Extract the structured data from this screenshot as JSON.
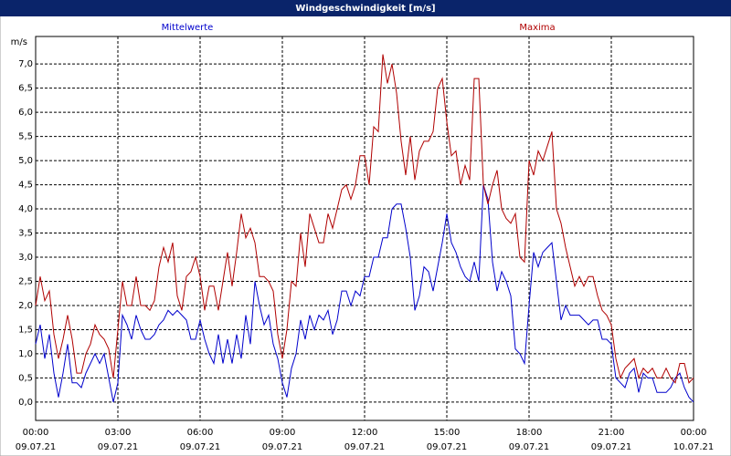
{
  "chart_data": {
    "type": "line",
    "title": "Windgeschwindigkeit [m/s]",
    "y_label": "m/s",
    "x": [
      0,
      10,
      20,
      30,
      40,
      50,
      60,
      70,
      80,
      90,
      100,
      110,
      120,
      130,
      140,
      150,
      160,
      170,
      180,
      190,
      200,
      210,
      220,
      230,
      240,
      250,
      260,
      270,
      280,
      290,
      300,
      310,
      320,
      330,
      340,
      350,
      360,
      370,
      380,
      390,
      400,
      410,
      420,
      430,
      440,
      450,
      460,
      470,
      480,
      490,
      500,
      510,
      520,
      530,
      540,
      550,
      560,
      570,
      580,
      590,
      600,
      610,
      620,
      630,
      640,
      650,
      660,
      670,
      680,
      690,
      700,
      710,
      720,
      730,
      740,
      750,
      760,
      770,
      780,
      790,
      800,
      810,
      820,
      830,
      840,
      850,
      860,
      870,
      880,
      890,
      900,
      910,
      920,
      930,
      940,
      950,
      960,
      970,
      980,
      990,
      1000,
      1010,
      1020,
      1030,
      1040,
      1050,
      1060,
      1070,
      1080,
      1090,
      1100,
      1110,
      1120,
      1130,
      1140,
      1150,
      1160,
      1170,
      1180,
      1190,
      1200,
      1210,
      1220,
      1230,
      1240,
      1250,
      1260,
      1270,
      1280,
      1290,
      1300,
      1310,
      1320,
      1330,
      1340,
      1350,
      1360,
      1370,
      1380,
      1390,
      1400,
      1410,
      1420,
      1430,
      1440
    ],
    "xlim": [
      0,
      1440
    ],
    "xticks": [
      {
        "value": 0,
        "label": "00:00 09.07.21"
      },
      {
        "value": 180,
        "label": "03:00 09.07.21"
      },
      {
        "value": 360,
        "label": "06:00 09.07.21"
      },
      {
        "value": 540,
        "label": "09:00 09.07.21"
      },
      {
        "value": 720,
        "label": "12:00 09.07.21"
      },
      {
        "value": 900,
        "label": "15:00 09.07.21"
      },
      {
        "value": 1080,
        "label": "18:00 09.07.21"
      },
      {
        "value": 1260,
        "label": "21:00 09.07.21"
      },
      {
        "value": 1440,
        "label": "00:00 10.07.21"
      }
    ],
    "ylim": [
      -0.38,
      7.57
    ],
    "yticks": [
      {
        "value": 0,
        "label": "0,0"
      },
      {
        "value": 0.5,
        "label": "0,5"
      },
      {
        "value": 1,
        "label": "1,0"
      },
      {
        "value": 1.5,
        "label": "1,5"
      },
      {
        "value": 2,
        "label": "2,0"
      },
      {
        "value": 2.5,
        "label": "2,5"
      },
      {
        "value": 3,
        "label": "3,0"
      },
      {
        "value": 3.5,
        "label": "3,5"
      },
      {
        "value": 4,
        "label": "4,0"
      },
      {
        "value": 4.5,
        "label": "4,5"
      },
      {
        "value": 5,
        "label": "5,0"
      },
      {
        "value": 5.5,
        "label": "5,5"
      },
      {
        "value": 6,
        "label": "6,0"
      },
      {
        "value": 6.5,
        "label": "6,5"
      },
      {
        "value": 7,
        "label": "7,0"
      }
    ],
    "grid": true,
    "series": [
      {
        "name": "Mittelwerte",
        "color": "#0000cc",
        "values": [
          1.2,
          1.6,
          0.9,
          1.4,
          0.6,
          0.1,
          0.6,
          1.2,
          0.4,
          0.4,
          0.3,
          0.6,
          0.8,
          1.0,
          0.8,
          1.0,
          0.5,
          0.0,
          0.4,
          1.8,
          1.6,
          1.3,
          1.8,
          1.5,
          1.3,
          1.3,
          1.4,
          1.6,
          1.7,
          1.9,
          1.8,
          1.9,
          1.8,
          1.7,
          1.3,
          1.3,
          1.7,
          1.3,
          1.0,
          0.8,
          1.4,
          0.8,
          1.3,
          0.8,
          1.4,
          0.9,
          1.8,
          1.2,
          2.5,
          2.0,
          1.6,
          1.8,
          1.2,
          0.9,
          0.4,
          0.1,
          0.7,
          1.0,
          1.7,
          1.3,
          1.8,
          1.5,
          1.8,
          1.7,
          1.9,
          1.4,
          1.7,
          2.3,
          2.3,
          2.0,
          2.3,
          2.2,
          2.6,
          2.6,
          3.0,
          3.0,
          3.4,
          3.4,
          4.0,
          4.1,
          4.1,
          3.6,
          3.0,
          1.9,
          2.2,
          2.8,
          2.7,
          2.3,
          2.8,
          3.3,
          3.9,
          3.3,
          3.1,
          2.8,
          2.6,
          2.5,
          2.9,
          2.5,
          4.5,
          4.2,
          2.9,
          2.3,
          2.7,
          2.5,
          2.2,
          1.1,
          1.0,
          0.8,
          2.0,
          3.1,
          2.8,
          3.1,
          3.2,
          3.3,
          2.5,
          1.7,
          2.0,
          1.8,
          1.8,
          1.8,
          1.7,
          1.6,
          1.7,
          1.7,
          1.3,
          1.3,
          1.2,
          0.5,
          0.4,
          0.3,
          0.6,
          0.7,
          0.2,
          0.6,
          0.5,
          0.5,
          0.2,
          0.2,
          0.2,
          0.3,
          0.5,
          0.6,
          0.3,
          0.1,
          0.0
        ]
      },
      {
        "name": "Maxima",
        "color": "#b00000",
        "values": [
          2.0,
          2.6,
          2.1,
          2.3,
          1.4,
          0.9,
          1.3,
          1.8,
          1.3,
          0.6,
          0.6,
          1.0,
          1.2,
          1.6,
          1.4,
          1.3,
          1.1,
          0.5,
          1.5,
          2.5,
          2.0,
          2.0,
          2.6,
          2.0,
          2.0,
          1.9,
          2.1,
          2.8,
          3.2,
          2.9,
          3.3,
          2.2,
          1.9,
          2.6,
          2.7,
          3.0,
          2.6,
          1.9,
          2.4,
          2.4,
          1.9,
          2.5,
          3.1,
          2.4,
          3.1,
          3.9,
          3.4,
          3.6,
          3.3,
          2.6,
          2.6,
          2.5,
          2.3,
          1.4,
          0.9,
          1.5,
          2.5,
          2.4,
          3.5,
          2.8,
          3.9,
          3.6,
          3.3,
          3.3,
          3.9,
          3.6,
          4.0,
          4.4,
          4.5,
          4.2,
          4.5,
          5.1,
          5.1,
          4.5,
          5.7,
          5.6,
          7.2,
          6.6,
          7.0,
          6.4,
          5.4,
          4.7,
          5.5,
          4.6,
          5.2,
          5.4,
          5.4,
          5.6,
          6.5,
          6.7,
          5.8,
          5.1,
          5.2,
          4.5,
          4.9,
          4.6,
          6.7,
          6.7,
          4.5,
          4.1,
          4.5,
          4.8,
          4.0,
          3.8,
          3.7,
          3.9,
          3.0,
          2.9,
          5.0,
          4.7,
          5.2,
          5.0,
          5.3,
          5.6,
          4.0,
          3.7,
          3.2,
          2.8,
          2.4,
          2.6,
          2.4,
          2.6,
          2.6,
          2.2,
          1.9,
          1.8,
          1.6,
          0.9,
          0.5,
          0.7,
          0.8,
          0.9,
          0.5,
          0.7,
          0.6,
          0.7,
          0.5,
          0.5,
          0.7,
          0.5,
          0.4,
          0.8,
          0.8,
          0.4,
          0.5
        ]
      }
    ]
  }
}
